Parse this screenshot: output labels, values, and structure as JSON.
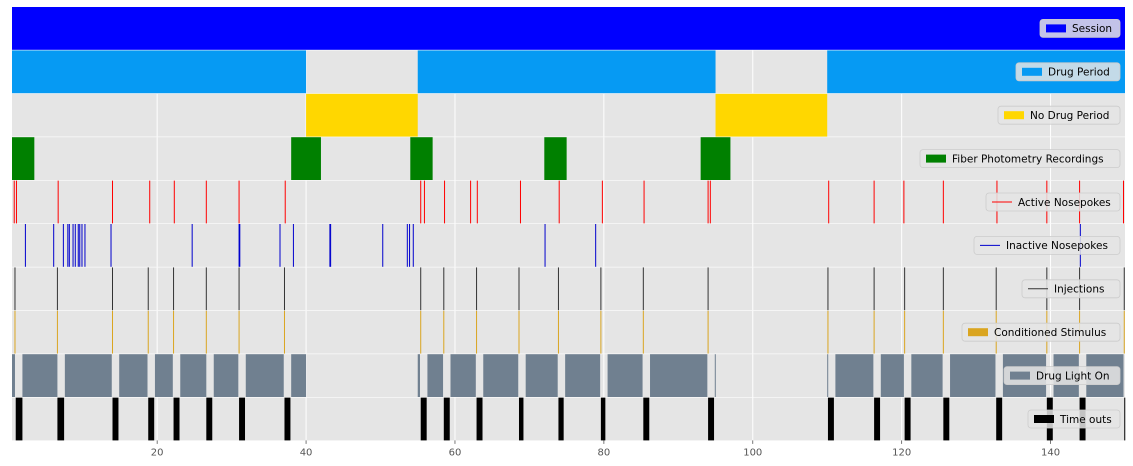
{
  "chart_data": {
    "type": "event_raster",
    "xlim": [
      0.5,
      150
    ],
    "x_ticks": [
      20,
      40,
      60,
      80,
      100,
      120,
      140
    ],
    "grid": true,
    "legend_placement": "right",
    "background_color": "#e5e5e5",
    "grid_color": "#ffffff",
    "rows": [
      {
        "name": "Session",
        "kind": "interval",
        "color": "#0000ff",
        "legend": "patch",
        "intervals": [
          [
            0.5,
            150
          ]
        ]
      },
      {
        "name": "Drug Period",
        "kind": "interval",
        "color": "#069af3",
        "legend": "patch",
        "intervals": [
          [
            0.5,
            40
          ],
          [
            55,
            95
          ],
          [
            110,
            150
          ]
        ]
      },
      {
        "name": "No Drug Period",
        "kind": "interval",
        "color": "#ffd700",
        "legend": "patch",
        "intervals": [
          [
            40,
            55
          ],
          [
            95,
            110
          ]
        ]
      },
      {
        "name": "Fiber Photometry Recordings",
        "kind": "interval",
        "color": "#008000",
        "legend": "patch",
        "intervals": [
          [
            0.5,
            3.5
          ],
          [
            38,
            42
          ],
          [
            54,
            57
          ],
          [
            72,
            75
          ],
          [
            93,
            97
          ]
        ]
      },
      {
        "name": "Active Nosepokes",
        "kind": "event",
        "color": "#ff0000",
        "legend": "line",
        "events": [
          0.8,
          1.1,
          6.7,
          14,
          19,
          22.3,
          26.6,
          31,
          37.2,
          55.4,
          55.9,
          58.6,
          62.1,
          63,
          68.8,
          74,
          79.8,
          85.4,
          94,
          94.3,
          110.2,
          116.3,
          120.3,
          125.6,
          132.8,
          139.5,
          143.9,
          149.8
        ]
      },
      {
        "name": "Inactive Nosepokes",
        "kind": "event",
        "color": "#0000cd",
        "legend": "line",
        "events": [
          2.3,
          6.1,
          7.4,
          8,
          8.2,
          8.7,
          9,
          9.4,
          9.6,
          9.9,
          10.3,
          13.8,
          24.7,
          31,
          31.1,
          36.5,
          38.3,
          43.2,
          43.3,
          50.3,
          53.6,
          53.9,
          54.4,
          72.1,
          78.9,
          144
        ]
      },
      {
        "name": "Injections",
        "kind": "event",
        "color": "#333333",
        "legend": "line",
        "events": [
          0.9,
          6.6,
          14,
          18.8,
          22.2,
          26.6,
          31,
          37.1,
          55.4,
          58.5,
          62.9,
          68.6,
          73.9,
          79.6,
          85.3,
          94,
          110.1,
          116.3,
          120.4,
          125.6,
          132.7,
          139.5,
          143.9,
          149.9
        ]
      },
      {
        "name": "Conditioned Stimulus",
        "kind": "event",
        "color": "#daa520",
        "legend": "patch",
        "events": [
          0.9,
          6.6,
          14,
          18.8,
          22.2,
          26.6,
          31,
          37.1,
          55.4,
          58.5,
          62.9,
          68.6,
          73.9,
          79.6,
          85.3,
          94,
          110.1,
          116.3,
          120.4,
          125.6,
          132.7,
          139.5,
          143.9,
          149.9
        ]
      },
      {
        "name": "Drug Light On",
        "kind": "interval",
        "color": "#708090",
        "legend": "patch",
        "intervals": [
          [
            0.5,
            0.9
          ],
          [
            1.9,
            6.6
          ],
          [
            7.6,
            13.9
          ],
          [
            14.9,
            18.7
          ],
          [
            19.7,
            22.1
          ],
          [
            23.1,
            26.6
          ],
          [
            27.6,
            30.9
          ],
          [
            31.9,
            37
          ],
          [
            38,
            40
          ],
          [
            55,
            55.3
          ],
          [
            56.3,
            58.4
          ],
          [
            59.4,
            62.8
          ],
          [
            63.8,
            68.5
          ],
          [
            69.5,
            73.8
          ],
          [
            74.8,
            79.5
          ],
          [
            80.5,
            85.2
          ],
          [
            86.2,
            93.9
          ],
          [
            94.9,
            95
          ],
          [
            110,
            110.1
          ],
          [
            111.1,
            116.2
          ],
          [
            117.2,
            120.3
          ],
          [
            121.3,
            125.5
          ],
          [
            126.5,
            132.6
          ],
          [
            133.6,
            139.4
          ],
          [
            140.4,
            143.8
          ],
          [
            144.8,
            149.8
          ]
        ]
      },
      {
        "name": "Time outs",
        "kind": "interval",
        "color": "#000000",
        "legend": "patch",
        "intervals": [
          [
            1,
            1.9
          ],
          [
            6.6,
            7.5
          ],
          [
            14,
            14.8
          ],
          [
            18.8,
            19.6
          ],
          [
            22.2,
            23
          ],
          [
            26.6,
            27.4
          ],
          [
            31,
            31.8
          ],
          [
            37.1,
            37.9
          ],
          [
            55.4,
            56.2
          ],
          [
            58.5,
            59.3
          ],
          [
            62.9,
            63.7
          ],
          [
            68.6,
            69.2
          ],
          [
            73.9,
            74.6
          ],
          [
            79.6,
            80.2
          ],
          [
            85.3,
            86.1
          ],
          [
            94,
            94.8
          ],
          [
            110.1,
            110.9
          ],
          [
            116.3,
            117.1
          ],
          [
            120.4,
            121.2
          ],
          [
            125.6,
            126.4
          ],
          [
            132.7,
            133.5
          ],
          [
            139.5,
            140.3
          ],
          [
            143.9,
            144.7
          ],
          [
            149.9,
            150
          ]
        ]
      }
    ]
  }
}
